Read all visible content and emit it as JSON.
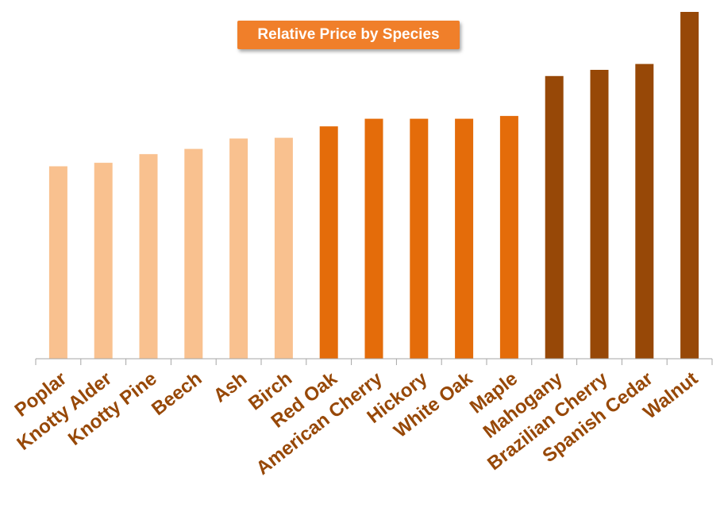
{
  "chart_data": {
    "type": "bar",
    "title": "Relative Price by Species",
    "xlabel": "",
    "ylabel": "",
    "ylim": [
      0,
      100
    ],
    "grid": false,
    "legend": "none",
    "categories": [
      "Poplar",
      "Knotty Alder",
      "Knotty Pine",
      "Beech",
      "Ash",
      "Birch",
      "Red Oak",
      "American Cherry",
      "Hickory",
      "White Oak",
      "Maple",
      "Mahogany",
      "Brazilian Cherry",
      "Spanish Cedar",
      "Walnut"
    ],
    "values": [
      55.5,
      56.5,
      59,
      60.5,
      63.5,
      63.7,
      67,
      69.2,
      69.2,
      69.2,
      70,
      81.5,
      83.3,
      85,
      100
    ],
    "bar_colors": [
      "#f9c18f",
      "#f9c18f",
      "#f9c18f",
      "#f9c18f",
      "#f9c18f",
      "#f9c18f",
      "#e46c0a",
      "#e46c0a",
      "#e46c0a",
      "#e46c0a",
      "#e46c0a",
      "#974807",
      "#974807",
      "#974807",
      "#974807"
    ],
    "label_color": "#974807",
    "axis_color": "#a6a6a6",
    "title_bg": "#f07f2a"
  }
}
